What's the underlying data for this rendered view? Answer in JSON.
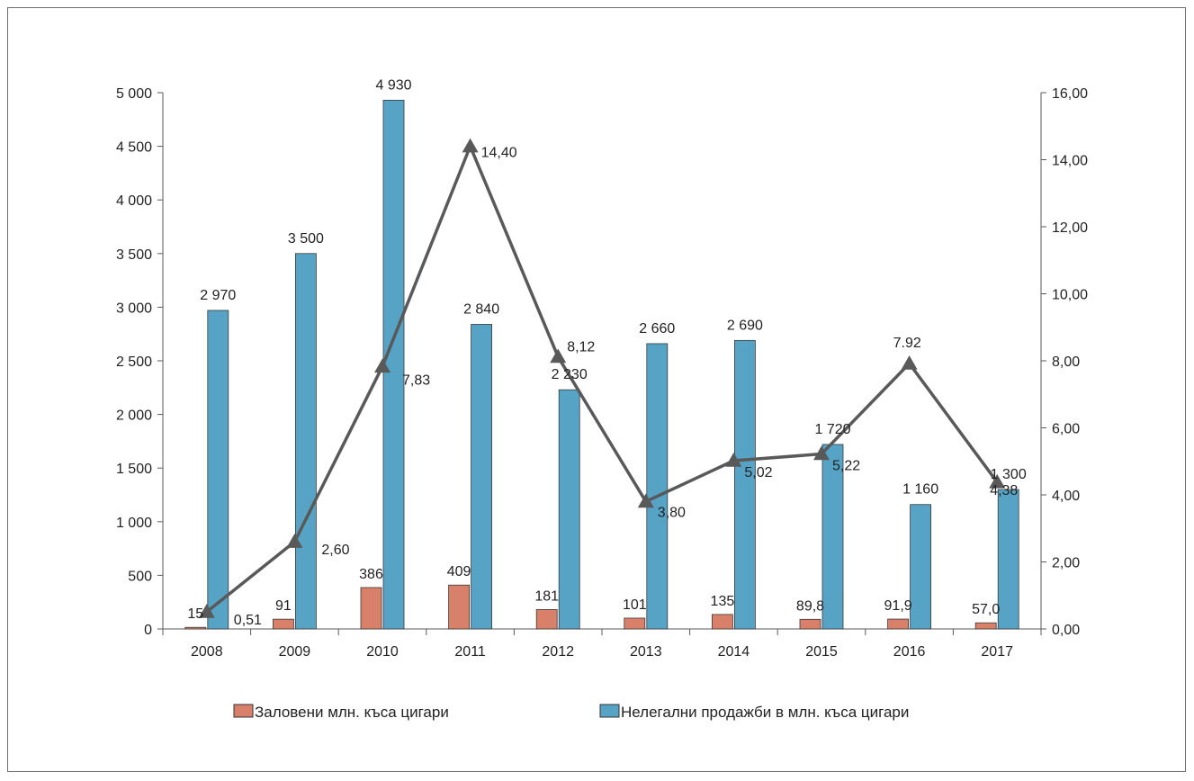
{
  "chart_data": {
    "type": "bar",
    "categories": [
      "2008",
      "2009",
      "2010",
      "2011",
      "2012",
      "2013",
      "2014",
      "2015",
      "2016",
      "2017"
    ],
    "series": [
      {
        "name": "Заловени млн. къса цигари",
        "type": "bar",
        "axis": "left",
        "color": "#d9806a",
        "values": [
          15,
          91,
          386,
          409,
          181,
          101,
          135,
          89.8,
          91.9,
          57.0
        ],
        "labels": [
          "15",
          "91",
          "386",
          "409",
          "181",
          "101",
          "135",
          "89,8",
          "91,9",
          "57,0"
        ]
      },
      {
        "name": "Нелегални продажби в млн. къса цигари",
        "type": "bar",
        "axis": "left",
        "color": "#56a3c6",
        "values": [
          2970,
          3500,
          4930,
          2840,
          2230,
          2660,
          2690,
          1720,
          1160,
          1300
        ],
        "labels": [
          "2 970",
          "3 500",
          "4 930",
          "2 840",
          "2 230",
          "2 660",
          "2 690",
          "1 720",
          "1 160",
          "1 300"
        ]
      },
      {
        "type": "line",
        "axis": "right",
        "color": "#595959",
        "marker": "triangle",
        "values": [
          0.51,
          2.6,
          7.83,
          14.4,
          8.12,
          3.8,
          5.02,
          5.22,
          7.92,
          4.38
        ],
        "labels": [
          "0,51",
          "2,60",
          "7,83",
          "14,40",
          "8,12",
          "3,80",
          "5,02",
          "5,22",
          "7.92",
          "4,38"
        ]
      }
    ],
    "y_left": {
      "range": [
        0,
        5000
      ],
      "ticks": [
        0,
        500,
        1000,
        1500,
        2000,
        2500,
        3000,
        3500,
        4000,
        4500,
        5000
      ],
      "tick_labels": [
        "0",
        "500",
        "1 000",
        "1 500",
        "2 000",
        "2 500",
        "3 000",
        "3 500",
        "4 000",
        "4 500",
        "5 000"
      ]
    },
    "y_right": {
      "range": [
        0,
        16
      ],
      "ticks": [
        0,
        2,
        4,
        6,
        8,
        10,
        12,
        14,
        16
      ],
      "tick_labels": [
        "0,00",
        "2,00",
        "4,00",
        "6,00",
        "8,00",
        "10,00",
        "12,00",
        "14,00",
        "16,00"
      ]
    },
    "grid": false,
    "legend": "bottom",
    "title": "",
    "xlabel": "",
    "ylabel": ""
  }
}
